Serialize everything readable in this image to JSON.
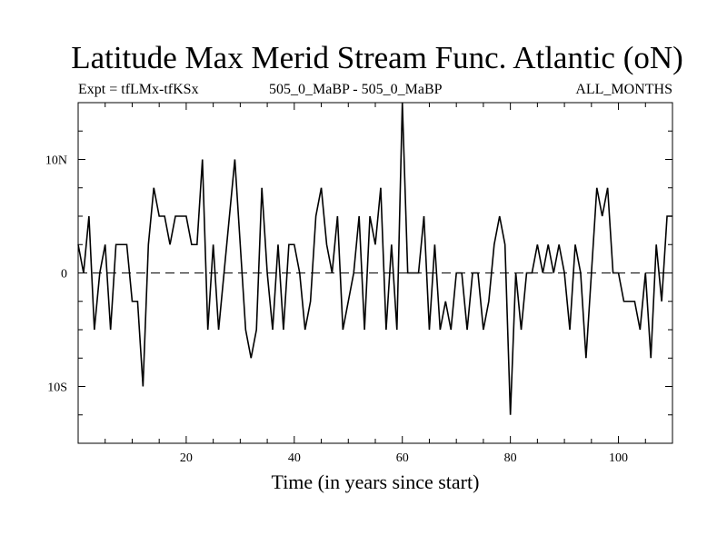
{
  "chart_data": {
    "type": "line",
    "title": "Latitude Max Merid Stream Func. Atlantic (oN)",
    "expt": "Expt = tfLMx-tfKSx",
    "subtitle": "505_0_MaBP - 505_0_MaBP",
    "months": "ALL_MONTHS",
    "xlabel": "Time (in years since start)",
    "ylabel": "",
    "xlim": [
      0,
      110
    ],
    "ylim": [
      -15,
      15
    ],
    "xticks": [
      {
        "value": 20,
        "label": "20"
      },
      {
        "value": 40,
        "label": "40"
      },
      {
        "value": 60,
        "label": "60"
      },
      {
        "value": 80,
        "label": "80"
      },
      {
        "value": 100,
        "label": "100"
      }
    ],
    "yticks": [
      {
        "value": 10,
        "label": "10N"
      },
      {
        "value": 0,
        "label": "0"
      },
      {
        "value": -10,
        "label": "10S"
      }
    ],
    "reference_line": 0,
    "series": [
      {
        "name": "latitude",
        "x": [
          0,
          1,
          2,
          3,
          4,
          5,
          6,
          7,
          8,
          9,
          10,
          11,
          12,
          13,
          14,
          15,
          16,
          17,
          18,
          19,
          20,
          21,
          22,
          23,
          24,
          25,
          26,
          27,
          28,
          29,
          30,
          31,
          32,
          33,
          34,
          35,
          36,
          37,
          38,
          39,
          40,
          41,
          42,
          43,
          44,
          45,
          46,
          47,
          48,
          49,
          50,
          51,
          52,
          53,
          54,
          55,
          56,
          57,
          58,
          59,
          60,
          61,
          62,
          63,
          64,
          65,
          66,
          67,
          68,
          69,
          70,
          71,
          72,
          73,
          74,
          75,
          76,
          77,
          78,
          79,
          80,
          81,
          82,
          83,
          84,
          85,
          86,
          87,
          88,
          89,
          90,
          91,
          92,
          93,
          94,
          95,
          96,
          97,
          98,
          99,
          100,
          101,
          102,
          103,
          104,
          105,
          106,
          107,
          108,
          109,
          110
        ],
        "values": [
          2.5,
          0,
          5,
          -5,
          0,
          2.5,
          -5,
          2.5,
          2.5,
          2.5,
          -2.5,
          -2.5,
          -10,
          2.5,
          7.5,
          5,
          5,
          2.5,
          5,
          5,
          5,
          2.5,
          2.5,
          10,
          -5,
          2.5,
          -5,
          0,
          5,
          10,
          2.5,
          -5,
          -7.5,
          -5,
          7.5,
          0,
          -5,
          2.5,
          -5,
          2.5,
          2.5,
          0,
          -5,
          -2.5,
          5,
          7.5,
          2.5,
          0,
          5,
          -5,
          -2.5,
          0,
          5,
          -5,
          5,
          2.5,
          7.5,
          -5,
          2.5,
          -5,
          15,
          0,
          0,
          0,
          5,
          -5,
          2.5,
          -5,
          -2.5,
          -5,
          0,
          0,
          -5,
          0,
          0,
          -5,
          -2.5,
          2.5,
          5,
          2.5,
          -12.5,
          0,
          -5,
          0,
          0,
          2.5,
          0,
          2.5,
          0,
          2.5,
          0,
          -5,
          2.5,
          0,
          -7.5,
          0,
          7.5,
          5,
          7.5,
          0,
          0,
          -2.5,
          -2.5,
          -2.5,
          -5,
          0,
          -7.5,
          2.5,
          -2.5,
          5,
          5
        ]
      }
    ]
  }
}
